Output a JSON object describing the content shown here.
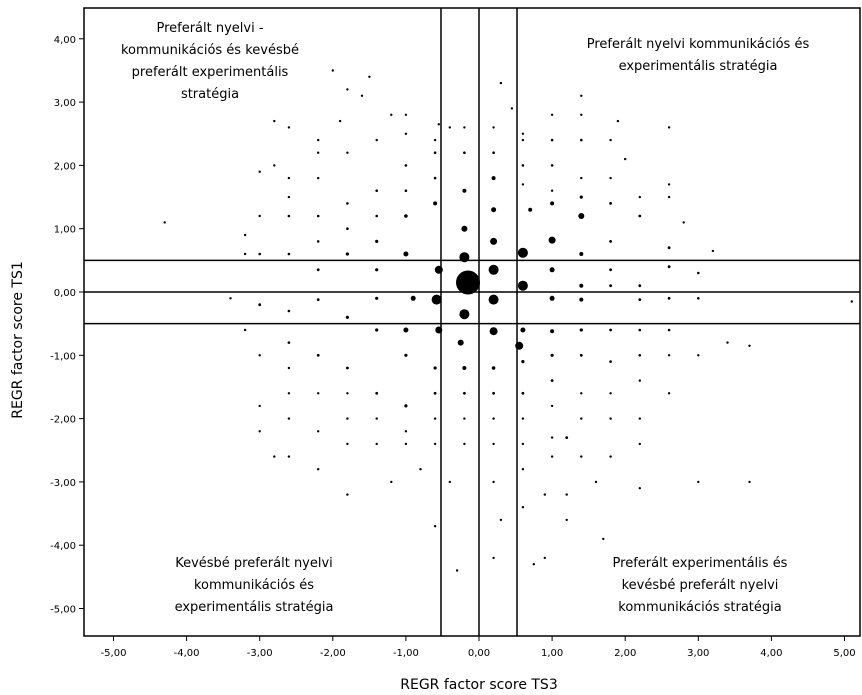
{
  "chart_data": {
    "type": "scatter",
    "title": "",
    "xlabel": "REGR factor score TS3",
    "ylabel": "REGR factor score TS1",
    "xlim": [
      -5.5,
      5.3
    ],
    "ylim": [
      -5.5,
      4.2
    ],
    "x_ticks": [
      -5,
      -4,
      -3,
      -2,
      -1,
      0,
      1,
      2,
      3,
      4,
      5
    ],
    "x_tick_labels": [
      "-5,00",
      "-4,00",
      "-3,00",
      "-2,00",
      "-1,00",
      "0,00",
      "1,00",
      "2,00",
      "3,00",
      "4,00",
      "5,00"
    ],
    "y_ticks": [
      4,
      3,
      2,
      1,
      0,
      -1,
      -2,
      -3,
      -4,
      -5
    ],
    "y_tick_labels": [
      "4,00",
      "3,00",
      "2,00",
      "1,00",
      "0,00",
      "-1,00",
      "-2,00",
      "-3,00",
      "-4,00",
      "-5,00"
    ],
    "reference_lines": {
      "vertical": [
        -0.52,
        0,
        0.52
      ],
      "horizontal": [
        0.5,
        0,
        -0.5
      ]
    },
    "quadrant_labels": [
      {
        "position": "top-left",
        "lines": [
          "Preferált nyelvi -",
          "kommunikációs és kevésbé",
          "preferált experimentális",
          "stratégia"
        ]
      },
      {
        "position": "top-right",
        "lines": [
          "Preferált nyelvi kommunikációs és",
          "experimentális stratégia"
        ]
      },
      {
        "position": "bottom-left",
        "lines": [
          "Kevésbé preferált nyelvi",
          "kommunikációs és",
          "experimentális stratégia"
        ]
      },
      {
        "position": "bottom-right",
        "lines": [
          "Preferált experimentális és",
          "kevésbé preferált nyelvi",
          "kommunikációs stratégia"
        ]
      }
    ],
    "grid": false,
    "legend": "none",
    "points": [
      [
        -0.15,
        0.15,
        12
      ],
      [
        -0.2,
        0.55,
        5
      ],
      [
        0.2,
        0.35,
        5
      ],
      [
        0.2,
        -0.12,
        5
      ],
      [
        -0.2,
        -0.35,
        5
      ],
      [
        -0.55,
        0.35,
        4
      ],
      [
        -0.58,
        -0.12,
        5
      ],
      [
        0.6,
        0.62,
        5
      ],
      [
        0.6,
        0.1,
        5
      ],
      [
        0.55,
        -0.85,
        4
      ],
      [
        0.2,
        -0.62,
        4
      ],
      [
        -0.55,
        -0.6,
        3.5
      ],
      [
        -0.2,
        1.0,
        3
      ],
      [
        0.2,
        0.8,
        3.5
      ],
      [
        -0.25,
        -0.8,
        3
      ],
      [
        1.0,
        0.82,
        3.5
      ],
      [
        -1.0,
        0.6,
        2.5
      ],
      [
        -0.9,
        -0.1,
        2.5
      ],
      [
        1.0,
        0.35,
        2.5
      ],
      [
        1.0,
        -0.1,
        2.5
      ],
      [
        -1.0,
        -0.6,
        2.5
      ],
      [
        0.6,
        -0.6,
        2.5
      ],
      [
        1.0,
        -0.62,
        2
      ],
      [
        1.4,
        1.2,
        3
      ],
      [
        1.4,
        0.6,
        2
      ],
      [
        1.4,
        0.1,
        2
      ],
      [
        1.4,
        -0.12,
        2
      ],
      [
        0.2,
        1.3,
        2.5
      ],
      [
        0.2,
        1.8,
        2
      ],
      [
        -0.2,
        1.6,
        2
      ],
      [
        0.7,
        1.3,
        2
      ],
      [
        1.0,
        1.4,
        2
      ],
      [
        -0.6,
        1.4,
        2
      ],
      [
        -1.0,
        1.2,
        1.8
      ],
      [
        -1.4,
        0.8,
        1.6
      ],
      [
        -1.4,
        0.35,
        1.6
      ],
      [
        -1.8,
        0.6,
        1.6
      ],
      [
        -1.8,
        -0.4,
        1.6
      ],
      [
        -1.4,
        -0.1,
        1.6
      ],
      [
        -1.4,
        -0.6,
        1.6
      ],
      [
        -2.2,
        0.35,
        1.4
      ],
      [
        -2.2,
        -0.12,
        1.4
      ],
      [
        -0.2,
        -1.2,
        2
      ],
      [
        0.2,
        -1.2,
        1.8
      ],
      [
        -0.6,
        -1.2,
        1.6
      ],
      [
        -1.0,
        -1.0,
        1.6
      ],
      [
        0.6,
        -1.1,
        1.6
      ],
      [
        1.0,
        -1.0,
        1.6
      ],
      [
        1.4,
        -0.6,
        1.6
      ],
      [
        1.8,
        -0.6,
        1.4
      ],
      [
        1.8,
        0.35,
        1.4
      ],
      [
        1.8,
        0.1,
        1.4
      ],
      [
        2.2,
        0.1,
        1.4
      ],
      [
        2.2,
        -0.12,
        1.4
      ],
      [
        1.8,
        0.8,
        1.4
      ],
      [
        2.2,
        1.2,
        1.4
      ],
      [
        1.8,
        1.4,
        1.4
      ],
      [
        1.4,
        1.5,
        1.6
      ],
      [
        2.6,
        0.7,
        1.4
      ],
      [
        2.6,
        0.4,
        1.4
      ],
      [
        2.6,
        -0.1,
        1.4
      ],
      [
        2.6,
        -0.6,
        1.3
      ],
      [
        3.0,
        0.3,
        1.3
      ],
      [
        3.0,
        -0.1,
        1.3
      ],
      [
        2.2,
        -0.6,
        1.3
      ],
      [
        2.2,
        -1.0,
        1.3
      ],
      [
        1.8,
        -1.1,
        1.3
      ],
      [
        1.4,
        -1.0,
        1.4
      ],
      [
        1.0,
        -1.4,
        1.4
      ],
      [
        0.6,
        -1.6,
        1.4
      ],
      [
        0.2,
        -1.6,
        1.4
      ],
      [
        -0.2,
        -1.6,
        1.4
      ],
      [
        -0.6,
        -1.6,
        1.4
      ],
      [
        -1.0,
        -1.8,
        1.6
      ],
      [
        -1.4,
        -1.6,
        1.4
      ],
      [
        -1.8,
        -1.2,
        1.4
      ],
      [
        -2.2,
        -1.0,
        1.4
      ],
      [
        -2.6,
        -0.8,
        1.3
      ],
      [
        -2.6,
        -0.3,
        1.3
      ],
      [
        -3.0,
        -0.2,
        1.4
      ],
      [
        -2.6,
        0.6,
        1.3
      ],
      [
        -3.0,
        0.6,
        1.3
      ],
      [
        -2.2,
        0.8,
        1.3
      ],
      [
        -2.6,
        1.2,
        1.3
      ],
      [
        -2.2,
        1.2,
        1.3
      ],
      [
        -1.8,
        1.0,
        1.3
      ],
      [
        -1.8,
        1.4,
        1.3
      ],
      [
        -1.4,
        1.2,
        1.3
      ],
      [
        -1.4,
        1.6,
        1.3
      ],
      [
        -1.0,
        1.6,
        1.3
      ],
      [
        -1.0,
        2.0,
        1.3
      ],
      [
        -0.6,
        1.8,
        1.3
      ],
      [
        -0.6,
        2.2,
        1.3
      ],
      [
        -0.2,
        2.2,
        1.3
      ],
      [
        0.2,
        2.2,
        1.3
      ],
      [
        0.6,
        2.0,
        1.3
      ],
      [
        1.0,
        2.0,
        1.3
      ],
      [
        1.4,
        2.4,
        1.3
      ],
      [
        1.0,
        2.4,
        1.3
      ],
      [
        0.6,
        2.5,
        1.2
      ],
      [
        0.2,
        2.6,
        1.2
      ],
      [
        -0.2,
        2.6,
        1.2
      ],
      [
        -0.55,
        2.65,
        1.2
      ],
      [
        -1.0,
        2.5,
        1.2
      ],
      [
        -1.4,
        2.4,
        1.2
      ],
      [
        -1.8,
        2.2,
        1.2
      ],
      [
        -2.2,
        2.2,
        1.2
      ],
      [
        -2.2,
        1.8,
        1.2
      ],
      [
        -2.6,
        1.8,
        1.2
      ],
      [
        -2.6,
        1.5,
        1.2
      ],
      [
        -3.0,
        1.2,
        1.2
      ],
      [
        -3.2,
        0.9,
        1.2
      ],
      [
        -3.2,
        0.6,
        1.2
      ],
      [
        -4.3,
        1.1,
        1.2
      ],
      [
        -3.2,
        -0.6,
        1.2
      ],
      [
        -3.0,
        -1.0,
        1.2
      ],
      [
        -2.6,
        -1.2,
        1.2
      ],
      [
        -2.6,
        -1.6,
        1.2
      ],
      [
        -2.2,
        -1.6,
        1.2
      ],
      [
        -1.8,
        -1.6,
        1.2
      ],
      [
        -1.8,
        -2.0,
        1.2
      ],
      [
        -1.4,
        -2.0,
        1.2
      ],
      [
        -1.0,
        -2.2,
        1.2
      ],
      [
        -0.6,
        -2.0,
        1.2
      ],
      [
        -0.2,
        -2.0,
        1.2
      ],
      [
        0.2,
        -2.0,
        1.2
      ],
      [
        0.6,
        -2.0,
        1.2
      ],
      [
        1.0,
        -1.8,
        1.2
      ],
      [
        1.4,
        -1.6,
        1.2
      ],
      [
        1.8,
        -1.6,
        1.2
      ],
      [
        2.2,
        -1.4,
        1.2
      ],
      [
        2.6,
        -1.0,
        1.2
      ],
      [
        3.0,
        -1.0,
        1.2
      ],
      [
        3.4,
        -0.8,
        1.2
      ],
      [
        3.7,
        -0.85,
        1.2
      ],
      [
        2.6,
        -1.6,
        1.2
      ],
      [
        2.2,
        -2.0,
        1.2
      ],
      [
        1.8,
        -2.0,
        1.2
      ],
      [
        1.4,
        -2.0,
        1.2
      ],
      [
        1.0,
        -2.3,
        1.2
      ],
      [
        1.2,
        -2.3,
        1.4
      ],
      [
        0.6,
        -2.4,
        1.2
      ],
      [
        0.2,
        -2.4,
        1.2
      ],
      [
        -0.2,
        -2.4,
        1.2
      ],
      [
        -0.6,
        -2.4,
        1.2
      ],
      [
        -1.0,
        -2.4,
        1.2
      ],
      [
        -1.4,
        -2.4,
        1.2
      ],
      [
        -1.8,
        -2.4,
        1.2
      ],
      [
        -2.2,
        -2.2,
        1.2
      ],
      [
        -2.6,
        -2.0,
        1.2
      ],
      [
        -3.0,
        -1.8,
        1.2
      ],
      [
        -3.0,
        -2.2,
        1.2
      ],
      [
        -2.6,
        -2.6,
        1.2
      ],
      [
        -2.8,
        -2.6,
        1.2
      ],
      [
        -2.2,
        -2.8,
        1.2
      ],
      [
        -1.8,
        -3.2,
        1.2
      ],
      [
        -1.2,
        -3.0,
        1.2
      ],
      [
        -0.8,
        -2.8,
        1.2
      ],
      [
        -0.4,
        -3.0,
        1.2
      ],
      [
        0.2,
        -3.0,
        1.2
      ],
      [
        0.6,
        -2.8,
        1.2
      ],
      [
        1.0,
        -2.6,
        1.2
      ],
      [
        1.4,
        -2.6,
        1.2
      ],
      [
        1.8,
        -2.6,
        1.2
      ],
      [
        2.2,
        -2.4,
        1.2
      ],
      [
        2.2,
        -3.1,
        1.2
      ],
      [
        1.6,
        -3.0,
        1.2
      ],
      [
        1.2,
        -3.2,
        1.2
      ],
      [
        0.9,
        -3.2,
        1.2
      ],
      [
        0.6,
        -3.4,
        1.2
      ],
      [
        0.3,
        -3.6,
        1.2
      ],
      [
        -0.6,
        -3.7,
        1.2
      ],
      [
        1.2,
        -3.6,
        1.2
      ],
      [
        1.7,
        -3.9,
        1.2
      ],
      [
        0.2,
        -4.2,
        1.2
      ],
      [
        0.75,
        -4.3,
        1.2
      ],
      [
        0.9,
        -4.2,
        1.2
      ],
      [
        -0.3,
        -4.4,
        1.2
      ],
      [
        3.0,
        -3.0,
        1.2
      ],
      [
        3.7,
        -3.0,
        1.2
      ],
      [
        5.1,
        -0.15,
        1.2
      ],
      [
        3.2,
        0.65,
        1.2
      ],
      [
        2.8,
        1.1,
        1.2
      ],
      [
        2.6,
        1.5,
        1.2
      ],
      [
        2.2,
        1.5,
        1.2
      ],
      [
        2.6,
        1.7,
        1.2
      ],
      [
        1.8,
        1.8,
        1.2
      ],
      [
        2.0,
        2.1,
        1.2
      ],
      [
        1.4,
        1.8,
        1.2
      ],
      [
        1.0,
        1.6,
        1.2
      ],
      [
        0.6,
        1.7,
        1.2
      ],
      [
        1.0,
        2.8,
        1.2
      ],
      [
        1.4,
        2.8,
        1.2
      ],
      [
        1.8,
        2.4,
        1.2
      ],
      [
        1.9,
        2.7,
        1.2
      ],
      [
        2.6,
        2.6,
        1.2
      ],
      [
        1.4,
        3.1,
        1.2
      ],
      [
        0.45,
        2.9,
        1.2
      ],
      [
        0.3,
        3.3,
        1.2
      ],
      [
        -1.2,
        2.8,
        1.2
      ],
      [
        -1.6,
        3.1,
        1.2
      ],
      [
        -1.9,
        2.7,
        1.2
      ],
      [
        -2.0,
        3.5,
        1.2
      ],
      [
        -1.8,
        3.2,
        1.2
      ],
      [
        -1.5,
        3.4,
        1.2
      ],
      [
        -2.6,
        2.6,
        1.2
      ],
      [
        -2.8,
        2.7,
        1.2
      ],
      [
        -2.8,
        2.0,
        1.2
      ],
      [
        -3.0,
        1.9,
        1.2
      ],
      [
        -3.4,
        -0.1,
        1.2
      ],
      [
        -2.2,
        2.4,
        1.2
      ],
      [
        -1.0,
        2.8,
        1.2
      ],
      [
        -0.6,
        2.4,
        1.2
      ],
      [
        -0.4,
        2.6,
        1.2
      ],
      [
        0.6,
        2.4,
        1.2
      ]
    ]
  }
}
